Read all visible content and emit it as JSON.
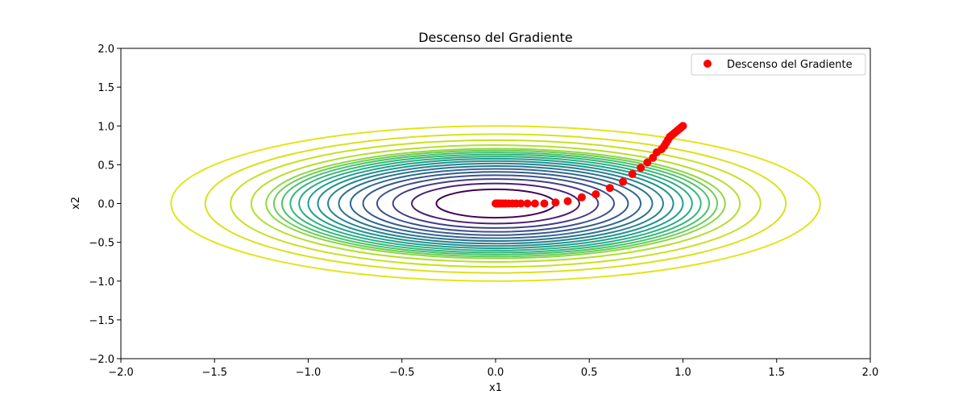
{
  "chart_data": {
    "type": "scatter",
    "title": "Descenso del Gradiente",
    "xlabel": "x1",
    "ylabel": "x2",
    "xlim": [
      -2.0,
      2.0
    ],
    "ylim": [
      -2.0,
      2.0
    ],
    "x_ticks": [
      "−2.0",
      "−1.5",
      "−1.0",
      "−0.5",
      "0.0",
      "0.5",
      "1.0",
      "1.5",
      "2.0"
    ],
    "y_ticks": [
      "−2.0",
      "−1.5",
      "−1.0",
      "−0.5",
      "0.0",
      "0.5",
      "1.0",
      "1.5",
      "2.0"
    ],
    "grid": false,
    "legend": {
      "placement": "upper right",
      "entries": [
        "Descenso del Gradiente"
      ]
    },
    "contour": {
      "function": "x1^2 + 3*x2^2",
      "levels": [
        0.1,
        0.2,
        0.3,
        0.4,
        0.5,
        0.6,
        0.7,
        0.8,
        0.9,
        1.0,
        1.1,
        1.2,
        1.3,
        1.4,
        1.5,
        1.7,
        2.0,
        2.4,
        3.0
      ],
      "colors": [
        "#440154",
        "#482173",
        "#433e85",
        "#3b528b",
        "#38598c",
        "#31688e",
        "#2c728e",
        "#26828e",
        "#21918c",
        "#1f9e89",
        "#27ad81",
        "#35b779",
        "#4ac16d",
        "#6ccd5a",
        "#8fd744",
        "#b5de2b",
        "#c8e020",
        "#d8e219",
        "#e3e418"
      ]
    },
    "series": [
      {
        "name": "Descenso del Gradiente",
        "color": "#ff0000",
        "x": [
          1.0,
          0.99,
          0.98,
          0.97,
          0.96,
          0.95,
          0.94,
          0.93,
          0.92,
          0.91,
          0.9,
          0.886,
          0.86,
          0.84,
          0.81,
          0.775,
          0.73,
          0.68,
          0.61,
          0.535,
          0.46,
          0.385,
          0.32,
          0.26,
          0.21,
          0.17,
          0.135,
          0.11,
          0.09,
          0.07,
          0.055,
          0.045,
          0.035,
          0.025,
          0.018,
          0.012,
          0.007,
          0.003,
          0.0
        ],
        "y": [
          1.0,
          0.98,
          0.96,
          0.94,
          0.92,
          0.9,
          0.88,
          0.86,
          0.82,
          0.78,
          0.74,
          0.7,
          0.66,
          0.59,
          0.53,
          0.46,
          0.38,
          0.28,
          0.2,
          0.12,
          0.08,
          0.03,
          0.013,
          0.0,
          0.0,
          0.0,
          0.0,
          0.0,
          0.0,
          0.0,
          0.0,
          0.0,
          0.0,
          0.0,
          0.0,
          0.0,
          0.0,
          0.0,
          0.0
        ]
      }
    ]
  }
}
